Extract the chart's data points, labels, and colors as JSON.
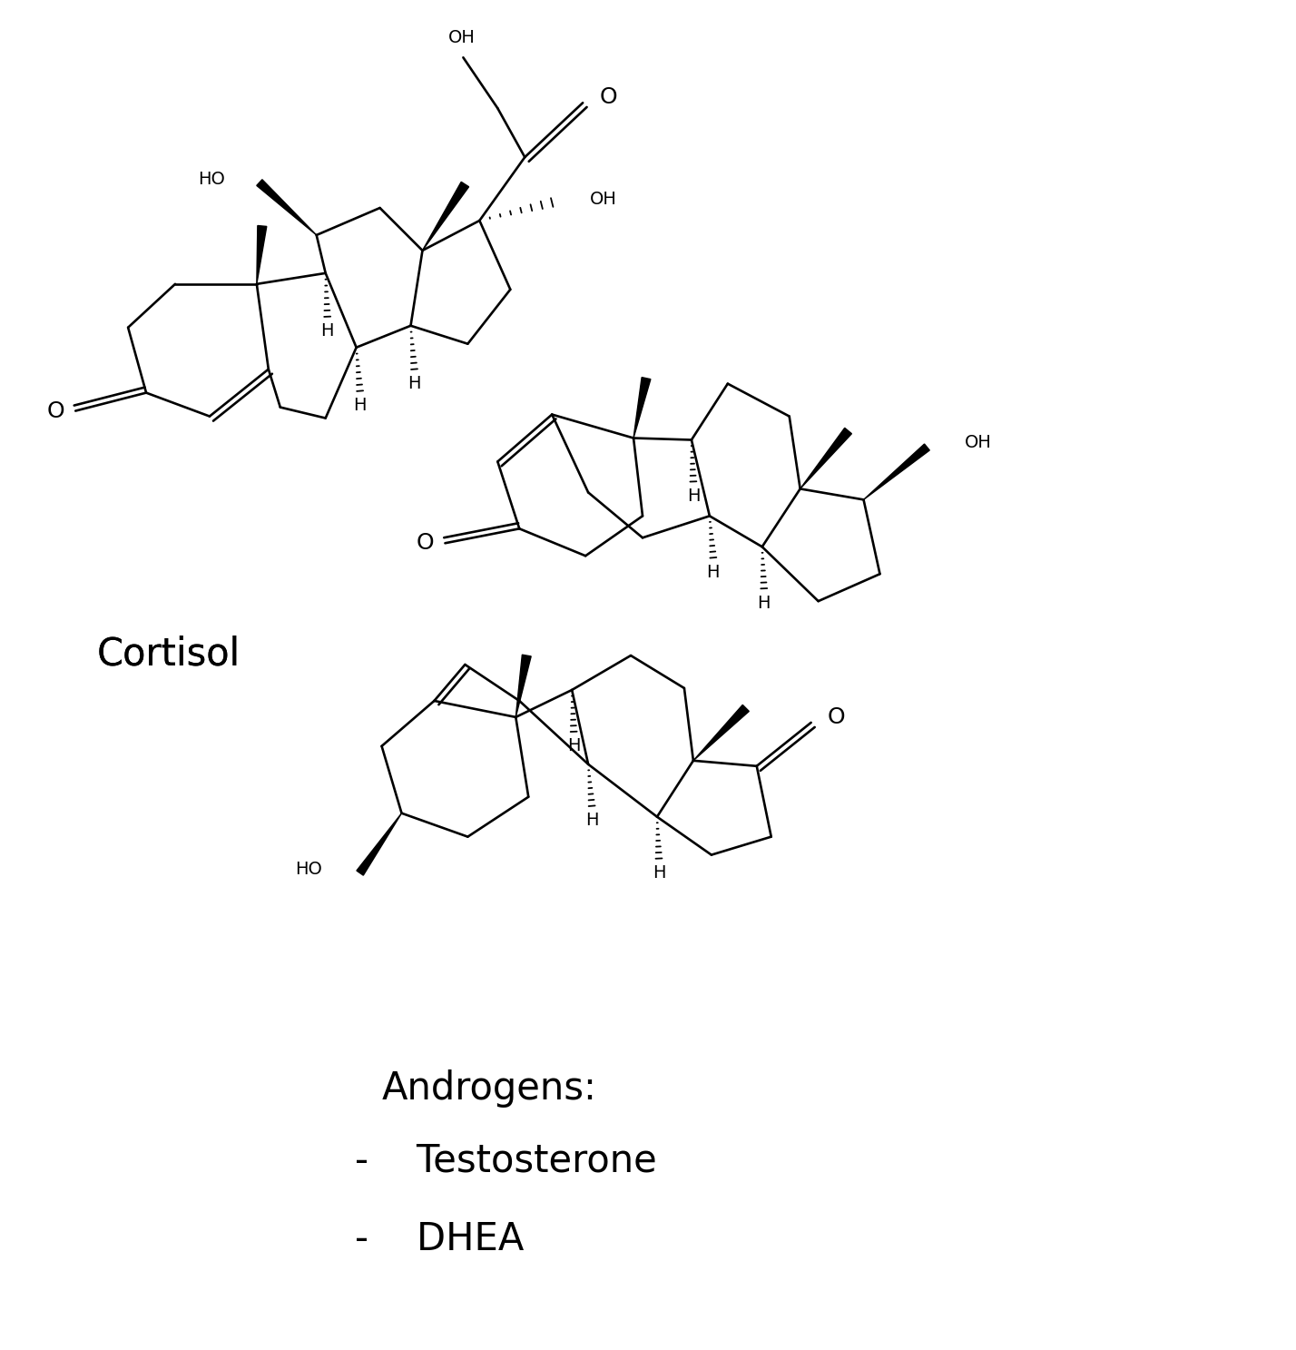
{
  "bg_color": "#ffffff",
  "figsize": [
    14.28,
    14.87
  ],
  "dpi": 100,
  "cortisol_label": "Cortisol",
  "androgens_label": "Androgens:",
  "testosterone_label": "-    Testosterone",
  "dhea_label": "-    DHEA"
}
